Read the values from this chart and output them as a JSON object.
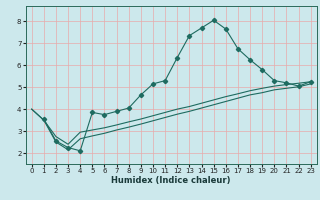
{
  "xlabel": "Humidex (Indice chaleur)",
  "bg_color": "#cce8ec",
  "grid_color_major": "#e8aaaa",
  "grid_color_minor": "#ddd8d8",
  "line_color": "#1e6b60",
  "xlim": [
    -0.5,
    23.5
  ],
  "ylim": [
    1.5,
    8.7
  ],
  "xticks": [
    0,
    1,
    2,
    3,
    4,
    5,
    6,
    7,
    8,
    9,
    10,
    11,
    12,
    13,
    14,
    15,
    16,
    17,
    18,
    19,
    20,
    21,
    22,
    23
  ],
  "yticks": [
    2,
    3,
    4,
    5,
    6,
    7,
    8
  ],
  "line1_x": [
    1,
    2,
    3,
    4,
    5,
    6,
    7,
    8,
    9,
    10,
    11,
    12,
    13,
    14,
    15,
    16,
    17,
    18,
    19,
    20,
    21,
    22,
    23
  ],
  "line1_y": [
    3.55,
    2.55,
    2.25,
    2.1,
    3.85,
    3.75,
    3.9,
    4.05,
    4.65,
    5.15,
    5.3,
    6.35,
    7.35,
    7.7,
    8.05,
    7.65,
    6.75,
    6.25,
    5.8,
    5.3,
    5.2,
    5.05,
    5.25
  ],
  "line2_x": [
    0,
    1,
    2,
    3,
    4,
    5,
    6,
    7,
    8,
    9,
    10,
    11,
    12,
    13,
    14,
    15,
    16,
    17,
    18,
    19,
    20,
    21,
    22,
    23
  ],
  "line2_y": [
    4.0,
    3.5,
    2.75,
    2.4,
    2.95,
    3.05,
    3.15,
    3.28,
    3.42,
    3.55,
    3.7,
    3.85,
    4.0,
    4.12,
    4.27,
    4.42,
    4.57,
    4.7,
    4.84,
    4.95,
    5.05,
    5.12,
    5.18,
    5.25
  ],
  "line3_x": [
    0,
    1,
    2,
    3,
    4,
    5,
    6,
    7,
    8,
    9,
    10,
    11,
    12,
    13,
    14,
    15,
    16,
    17,
    18,
    19,
    20,
    21,
    22,
    23
  ],
  "line3_y": [
    4.0,
    3.5,
    2.5,
    2.15,
    2.65,
    2.78,
    2.9,
    3.05,
    3.18,
    3.32,
    3.47,
    3.62,
    3.77,
    3.9,
    4.05,
    4.2,
    4.35,
    4.5,
    4.65,
    4.75,
    4.88,
    4.95,
    5.02,
    5.15
  ]
}
